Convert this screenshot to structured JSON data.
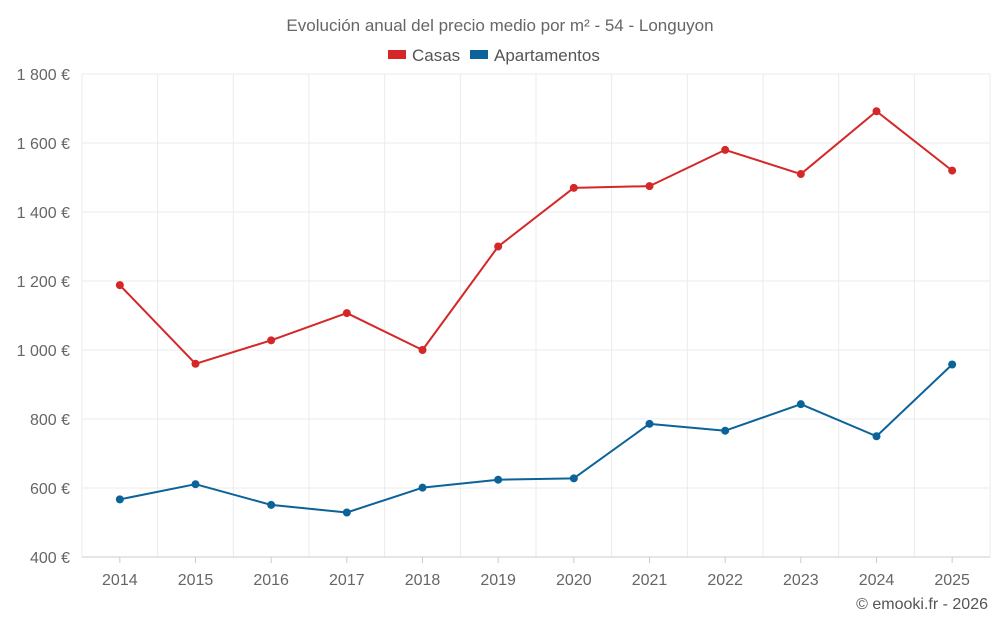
{
  "chart_data": {
    "type": "line",
    "title": "Evolución anual del precio medio por m² - 54 - Longuyon",
    "categories": [
      "2014",
      "2015",
      "2016",
      "2017",
      "2018",
      "2019",
      "2020",
      "2021",
      "2022",
      "2023",
      "2024",
      "2025"
    ],
    "series": [
      {
        "name": "Casas",
        "color": "#d62728",
        "values": [
          1188,
          960,
          1028,
          1107,
          1000,
          1300,
          1470,
          1475,
          1580,
          1510,
          1692,
          1520
        ]
      },
      {
        "name": "Apartamentos",
        "color": "#0b6399",
        "values": [
          567,
          611,
          551,
          529,
          601,
          624,
          628,
          786,
          766,
          843,
          750,
          958
        ]
      }
    ],
    "y_ticks": [
      400,
      600,
      800,
      1000,
      1200,
      1400,
      1600,
      1800
    ],
    "y_tick_labels": [
      "400 €",
      "600 €",
      "800 €",
      "1 000 €",
      "1 200 €",
      "1 400 €",
      "1 600 €",
      "1 800 €"
    ],
    "ylim": [
      400,
      1800
    ],
    "legend_position": "top-center",
    "grid": true
  },
  "credit": "© emooki.fr - 2026"
}
